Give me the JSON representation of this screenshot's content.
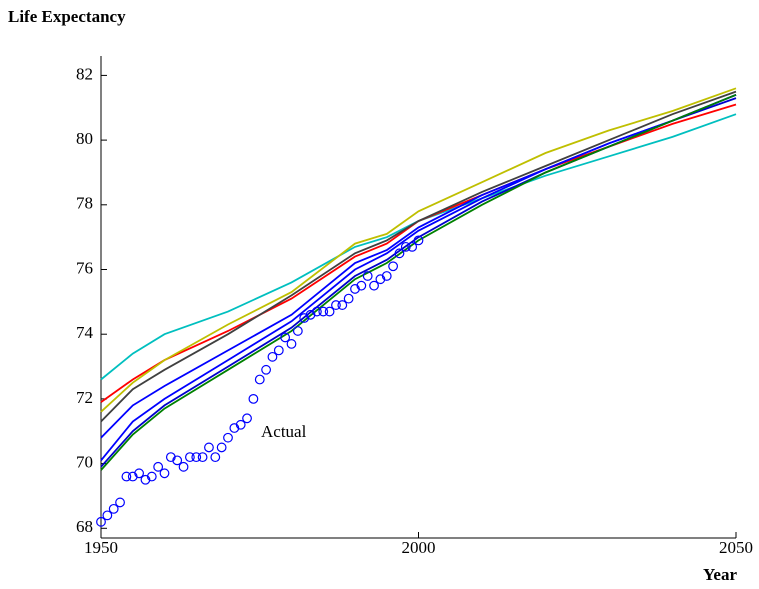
{
  "chart_data": {
    "type": "line",
    "title": "Life Expectancy",
    "xlabel": "Year",
    "annotation": "Actual",
    "xlim": [
      1950,
      2050
    ],
    "xticks": [
      1950,
      2000,
      2050
    ],
    "ylim": [
      67.7,
      82.6
    ],
    "yticks": [
      68,
      70,
      72,
      74,
      76,
      78,
      80,
      82
    ],
    "grid": false,
    "series": [
      {
        "color": "#00bfbf",
        "x": [
          1950,
          1955,
          1960,
          1970,
          1980,
          1990,
          1995,
          2000,
          2010,
          2020,
          2030,
          2040,
          2050
        ],
        "values": [
          72.6,
          73.4,
          74.0,
          74.7,
          75.6,
          76.7,
          77.0,
          77.5,
          78.2,
          78.9,
          79.5,
          80.1,
          80.8
        ]
      },
      {
        "color": "#ff0000",
        "x": [
          1950,
          1955,
          1960,
          1970,
          1980,
          1990,
          1995,
          2000,
          2010,
          2020,
          2030,
          2040,
          2050
        ],
        "values": [
          71.9,
          72.6,
          73.2,
          74.1,
          75.1,
          76.4,
          76.8,
          77.5,
          78.3,
          79.1,
          79.8,
          80.5,
          81.1
        ]
      },
      {
        "color": "#bfbf00",
        "x": [
          1950,
          1955,
          1960,
          1970,
          1980,
          1990,
          1995,
          2000,
          2010,
          2020,
          2030,
          2040,
          2050
        ],
        "values": [
          71.6,
          72.5,
          73.2,
          74.3,
          75.3,
          76.8,
          77.1,
          77.8,
          78.7,
          79.6,
          80.3,
          80.9,
          81.6
        ]
      },
      {
        "color": "#404040",
        "x": [
          1950,
          1955,
          1960,
          1970,
          1980,
          1990,
          1995,
          2000,
          2010,
          2020,
          2030,
          2040,
          2050
        ],
        "values": [
          71.3,
          72.3,
          72.9,
          74.0,
          75.2,
          76.5,
          76.9,
          77.5,
          78.4,
          79.2,
          80.0,
          80.8,
          81.5
        ]
      },
      {
        "color": "#0000ff",
        "x": [
          1950,
          1955,
          1960,
          1970,
          1980,
          1990,
          1995,
          2000,
          2010,
          2020,
          2030,
          2040,
          2050
        ],
        "values": [
          70.8,
          71.8,
          72.4,
          73.5,
          74.6,
          76.2,
          76.6,
          77.3,
          78.3,
          79.1,
          79.9,
          80.6,
          81.4
        ]
      },
      {
        "color": "#0000ff",
        "x": [
          1950,
          1955,
          1960,
          1970,
          1980,
          1990,
          1995,
          2000,
          2010,
          2020,
          2030,
          2040,
          2050
        ],
        "values": [
          70.1,
          71.3,
          72.0,
          73.2,
          74.4,
          76.0,
          76.5,
          77.2,
          78.2,
          79.1,
          79.9,
          80.6,
          81.4
        ]
      },
      {
        "color": "#0000cc",
        "x": [
          1950,
          1955,
          1960,
          1970,
          1980,
          1990,
          1995,
          2000,
          2010,
          2020,
          2030,
          2040,
          2050
        ],
        "values": [
          69.9,
          71.0,
          71.8,
          73.0,
          74.2,
          75.8,
          76.3,
          77.0,
          78.1,
          79.0,
          79.8,
          80.6,
          81.3
        ]
      },
      {
        "color": "#008000",
        "x": [
          1950,
          1955,
          1960,
          1970,
          1980,
          1990,
          1995,
          2000,
          2010,
          2020,
          2030,
          2040,
          2050
        ],
        "values": [
          69.8,
          70.9,
          71.7,
          72.9,
          74.1,
          75.7,
          76.2,
          76.9,
          78.0,
          79.0,
          79.8,
          80.6,
          81.4
        ]
      },
      {
        "color": "#0000ff",
        "style": "markers",
        "x": [
          1950,
          1951,
          1952,
          1953,
          1954,
          1955,
          1956,
          1957,
          1958,
          1959,
          1960,
          1961,
          1962,
          1963,
          1964,
          1965,
          1966,
          1967,
          1968,
          1969,
          1970,
          1971,
          1972,
          1973,
          1974,
          1975,
          1976,
          1977,
          1978,
          1979,
          1980,
          1981,
          1982,
          1983,
          1984,
          1985,
          1986,
          1987,
          1988,
          1989,
          1990,
          1991,
          1992,
          1993,
          1994,
          1995,
          1996,
          1997,
          1998,
          1999,
          2000
        ],
        "values": [
          68.2,
          68.4,
          68.6,
          68.8,
          69.6,
          69.6,
          69.7,
          69.5,
          69.6,
          69.9,
          69.7,
          70.2,
          70.1,
          69.9,
          70.2,
          70.2,
          70.2,
          70.5,
          70.2,
          70.5,
          70.8,
          71.1,
          71.2,
          71.4,
          72.0,
          72.6,
          72.9,
          73.3,
          73.5,
          73.9,
          73.7,
          74.1,
          74.5,
          74.6,
          74.7,
          74.7,
          74.7,
          74.9,
          74.9,
          75.1,
          75.4,
          75.5,
          75.8,
          75.5,
          75.7,
          75.8,
          76.1,
          76.5,
          76.7,
          76.7,
          76.9
        ]
      }
    ]
  }
}
